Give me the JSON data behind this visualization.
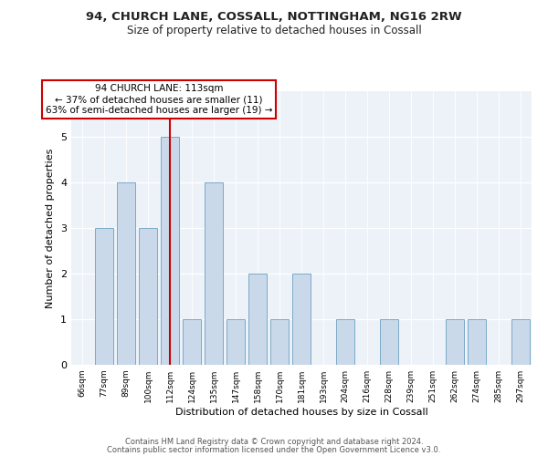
{
  "title_line1": "94, CHURCH LANE, COSSALL, NOTTINGHAM, NG16 2RW",
  "title_line2": "Size of property relative to detached houses in Cossall",
  "xlabel": "Distribution of detached houses by size in Cossall",
  "ylabel": "Number of detached properties",
  "categories": [
    "66sqm",
    "77sqm",
    "89sqm",
    "100sqm",
    "112sqm",
    "124sqm",
    "135sqm",
    "147sqm",
    "158sqm",
    "170sqm",
    "181sqm",
    "193sqm",
    "204sqm",
    "216sqm",
    "228sqm",
    "239sqm",
    "251sqm",
    "262sqm",
    "274sqm",
    "285sqm",
    "297sqm"
  ],
  "values": [
    0,
    3,
    4,
    3,
    5,
    1,
    4,
    1,
    2,
    1,
    2,
    0,
    1,
    0,
    1,
    0,
    0,
    1,
    1,
    0,
    1
  ],
  "bar_color": "#c9d9ea",
  "bar_edgecolor": "#7aaac8",
  "highlight_index": 4,
  "highlight_color": "#cc0000",
  "annotation_text": "94 CHURCH LANE: 113sqm\n← 37% of detached houses are smaller (11)\n63% of semi-detached houses are larger (19) →",
  "annotation_box_edgecolor": "#cc0000",
  "ylim": [
    0,
    6
  ],
  "yticks": [
    0,
    1,
    2,
    3,
    4,
    5,
    6
  ],
  "footer_line1": "Contains HM Land Registry data © Crown copyright and database right 2024.",
  "footer_line2": "Contains public sector information licensed under the Open Government Licence v3.0.",
  "background_color": "#ffffff",
  "plot_background_color": "#edf2f9"
}
